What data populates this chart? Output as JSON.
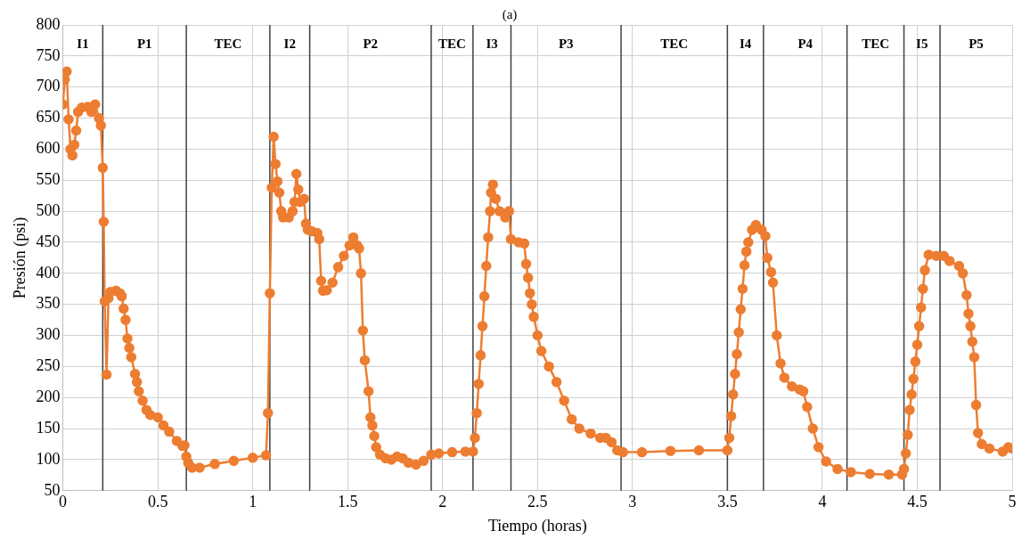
{
  "chart_data": {
    "type": "line",
    "title": "(a)",
    "xlabel": "Tiempo (horas)",
    "ylabel": "Presión (psi)",
    "xlim": [
      0,
      5
    ],
    "xticks": [
      0,
      0.5,
      1,
      1.5,
      2,
      2.5,
      3,
      3.5,
      4,
      4.5,
      5
    ],
    "ylim": [
      50,
      800
    ],
    "yticks": [
      50,
      100,
      150,
      200,
      250,
      300,
      350,
      400,
      450,
      500,
      550,
      600,
      650,
      700,
      750,
      800
    ],
    "grid": true,
    "legend": false,
    "marker": "circle",
    "line_style": "solid",
    "ref_lines": [
      {
        "axis": "x",
        "value": 0.21,
        "color": "#404040"
      },
      {
        "axis": "x",
        "value": 0.65,
        "color": "#404040"
      },
      {
        "axis": "x",
        "value": 1.09,
        "color": "#404040"
      },
      {
        "axis": "x",
        "value": 1.3,
        "color": "#404040"
      },
      {
        "axis": "x",
        "value": 1.94,
        "color": "#404040"
      },
      {
        "axis": "x",
        "value": 2.16,
        "color": "#404040"
      },
      {
        "axis": "x",
        "value": 2.36,
        "color": "#404040"
      },
      {
        "axis": "x",
        "value": 2.94,
        "color": "#404040"
      },
      {
        "axis": "x",
        "value": 3.5,
        "color": "#404040"
      },
      {
        "axis": "x",
        "value": 3.69,
        "color": "#404040"
      },
      {
        "axis": "x",
        "value": 4.13,
        "color": "#404040"
      },
      {
        "axis": "x",
        "value": 4.43,
        "color": "#404040"
      },
      {
        "axis": "x",
        "value": 4.62,
        "color": "#404040"
      }
    ],
    "annotations": [
      "I1",
      "P1",
      "TEC",
      "I2",
      "P2",
      "TEC",
      "I3",
      "P3",
      "TEC",
      "I4",
      "P4",
      "TEC",
      "I5",
      "P5"
    ],
    "series": [
      {
        "color": "#ed7d31",
        "x": [
          0,
          0.01,
          0.02,
          0.03,
          0.04,
          0.05,
          0.06,
          0.07,
          0.08,
          0.1,
          0.13,
          0.15,
          0.17,
          0.19,
          0.2,
          0.21,
          0.215,
          0.22,
          0.23,
          0.24,
          0.25,
          0.28,
          0.3,
          0.31,
          0.32,
          0.33,
          0.34,
          0.35,
          0.36,
          0.38,
          0.39,
          0.4,
          0.42,
          0.44,
          0.46,
          0.5,
          0.53,
          0.56,
          0.6,
          0.63,
          0.64,
          0.65,
          0.66,
          0.68,
          0.72,
          0.8,
          0.9,
          1,
          1.07,
          1.08,
          1.09,
          1.1,
          1.11,
          1.12,
          1.13,
          1.14,
          1.15,
          1.16,
          1.19,
          1.21,
          1.22,
          1.23,
          1.24,
          1.25,
          1.27,
          1.28,
          1.29,
          1.31,
          1.34,
          1.35,
          1.36,
          1.37,
          1.39,
          1.42,
          1.45,
          1.48,
          1.51,
          1.53,
          1.55,
          1.56,
          1.57,
          1.58,
          1.59,
          1.61,
          1.62,
          1.63,
          1.64,
          1.65,
          1.67,
          1.7,
          1.73,
          1.76,
          1.79,
          1.82,
          1.86,
          1.9,
          1.94,
          1.98,
          2.05,
          2.12,
          2.16,
          2.17,
          2.18,
          2.19,
          2.2,
          2.21,
          2.22,
          2.23,
          2.24,
          2.25,
          2.255,
          2.265,
          2.28,
          2.3,
          2.33,
          2.35,
          2.36,
          2.4,
          2.43,
          2.44,
          2.45,
          2.46,
          2.47,
          2.48,
          2.5,
          2.52,
          2.56,
          2.6,
          2.64,
          2.68,
          2.72,
          2.78,
          2.83,
          2.86,
          2.89,
          2.92,
          2.95,
          3.05,
          3.2,
          3.35,
          3.5,
          3.51,
          3.52,
          3.53,
          3.54,
          3.55,
          3.56,
          3.57,
          3.58,
          3.59,
          3.6,
          3.61,
          3.63,
          3.65,
          3.68,
          3.7,
          3.71,
          3.73,
          3.74,
          3.76,
          3.78,
          3.8,
          3.84,
          3.88,
          3.9,
          3.92,
          3.95,
          3.98,
          4.02,
          4.08,
          4.15,
          4.25,
          4.35,
          4.42,
          4.43,
          4.44,
          4.45,
          4.46,
          4.47,
          4.48,
          4.49,
          4.5,
          4.51,
          4.52,
          4.53,
          4.54,
          4.56,
          4.6,
          4.64,
          4.67,
          4.72,
          4.74,
          4.76,
          4.77,
          4.78,
          4.79,
          4.8,
          4.81,
          4.82,
          4.84,
          4.88,
          4.95,
          4.98,
          5
        ],
        "values": [
          672,
          712,
          725,
          648,
          600,
          590,
          607,
          630,
          660,
          667,
          668,
          660,
          672,
          650,
          638,
          570,
          483,
          355,
          237,
          360,
          370,
          372,
          368,
          363,
          343,
          325,
          295,
          280,
          265,
          238,
          225,
          210,
          195,
          180,
          172,
          168,
          155,
          145,
          130,
          122,
          123,
          105,
          95,
          87,
          87,
          93,
          98,
          103,
          107,
          175,
          368,
          538,
          620,
          576,
          548,
          530,
          500,
          490,
          490,
          500,
          515,
          560,
          535,
          515,
          520,
          480,
          470,
          468,
          465,
          455,
          388,
          372,
          373,
          385,
          410,
          428,
          445,
          458,
          445,
          440,
          400,
          308,
          260,
          210,
          168,
          155,
          138,
          120,
          108,
          102,
          100,
          105,
          102,
          95,
          92,
          98,
          108,
          110,
          112,
          113,
          113,
          135,
          175,
          222,
          268,
          315,
          363,
          412,
          458,
          500,
          530,
          543,
          520,
          500,
          490,
          500,
          455,
          450,
          448,
          415,
          393,
          368,
          350,
          330,
          300,
          275,
          250,
          225,
          195,
          165,
          150,
          142,
          135,
          135,
          128,
          115,
          112,
          112,
          114,
          115,
          115,
          135,
          170,
          205,
          238,
          270,
          305,
          342,
          375,
          413,
          435,
          450,
          470,
          478,
          470,
          460,
          425,
          402,
          385,
          300,
          255,
          232,
          218,
          213,
          210,
          185,
          150,
          120,
          97,
          85,
          80,
          77,
          76,
          76,
          85,
          110,
          140,
          180,
          205,
          230,
          258,
          285,
          315,
          345,
          375,
          405,
          430,
          428,
          428,
          420,
          412,
          400,
          365,
          335,
          315,
          290,
          265,
          188,
          143,
          125,
          118,
          113,
          120,
          118
        ]
      }
    ]
  }
}
